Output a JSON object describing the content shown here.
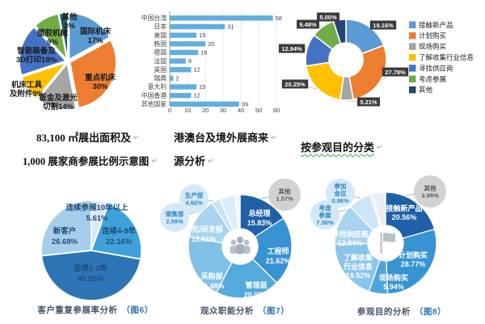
{
  "page": {
    "background": "#ffffff"
  },
  "texts": {
    "area_line1": "83,100 ㎡展出面积及",
    "area_line2": "1,000 展家商参展比例示意图",
    "overseas_line1": "港澳台及境外展商来",
    "overseas_line2": "源分析",
    "purpose_title": "按参观目的分类",
    "paragraph_mark": "↵"
  },
  "chart_data": [
    {
      "id": "exhibitor-structure-pie",
      "type": "pie",
      "labels": [
        "国际机床",
        "重点机床",
        "钣金及激光切割",
        "机床工具及附件",
        "智能装备及3D打印",
        "塑胶机械",
        "其他"
      ],
      "values": [
        17,
        30,
        14,
        9,
        18,
        9,
        3
      ],
      "unit": "%",
      "label_lines": [
        [
          "国际机床",
          "17%"
        ],
        [
          "重点机床",
          "30%"
        ],
        [
          "钣金及激光",
          "切割14%"
        ],
        [
          "机床工具",
          "及附件9%"
        ],
        [
          "智能装备及",
          "3D打印18%"
        ],
        [
          "塑胶机械",
          "9%"
        ],
        [
          "其他",
          "3%"
        ]
      ],
      "colors": [
        "#5b9bd5",
        "#ed7d31",
        "#a5a5a5",
        "#ffc000",
        "#4472c4",
        "#70ad47",
        "#1e5c66"
      ]
    },
    {
      "id": "overseas-exhibitor-origin-bar",
      "type": "bar",
      "orientation": "horizontal",
      "categories": [
        "中国台湾",
        "日本",
        "美国",
        "韩国",
        "德国",
        "法国",
        "英国",
        "瑞典",
        "意大利",
        "中国香港",
        "其他国家"
      ],
      "values": [
        58,
        31,
        15,
        20,
        16,
        9,
        12,
        2,
        15,
        12,
        39
      ],
      "xlim": [
        0,
        60
      ],
      "xticks": [
        0,
        10,
        20,
        30,
        40,
        50,
        60
      ],
      "bar_color": "#62aede",
      "grid": true
    },
    {
      "id": "visit-purpose-classification-donut",
      "type": "pie",
      "labels": [
        "接触新产品",
        "计划购买",
        "现场购买",
        "了解收集行业信息",
        "寻找供应商",
        "考虑参展",
        "其他"
      ],
      "values": [
        19.16,
        27.78,
        5.21,
        20.25,
        12.94,
        9.48,
        5.0
      ],
      "value_labels": [
        "19.16%",
        "27.78%",
        "5.21%",
        "20.25%",
        "12.94%",
        "9.48%",
        "5.00%"
      ],
      "colors": [
        "#5b9bd5",
        "#ed7d31",
        "#a5a5a5",
        "#ffc000",
        "#4472c4",
        "#70ad47",
        "#264478"
      ],
      "legend_position": "right"
    },
    {
      "id": "repeat-exhibit-rate-pie",
      "type": "pie",
      "labels": [
        "连续参展10年以上",
        "连续4-9年",
        "连续1-3年",
        "新客户"
      ],
      "values": [
        5.61,
        22.16,
        45.55,
        26.68
      ],
      "label_lines": [
        [
          "连续参展10年以上",
          "5.61%"
        ],
        [
          "连续4-9年",
          "22.16%"
        ],
        [
          "连续1-3年",
          "45.55%"
        ],
        [
          "新客户",
          "26.68%"
        ]
      ],
      "colors": [
        "#dae9f6",
        "#3ea1d9",
        "#2e75b6",
        "#a6cde9"
      ],
      "caption": "客户重复参展率分析",
      "caption_fig": "（图6）"
    },
    {
      "id": "visitor-function-donut",
      "type": "donut",
      "labels": [
        "总经理",
        "工程师",
        "管理层",
        "采购部",
        "研究/研发部",
        "销售部",
        "生产部",
        "其他"
      ],
      "values": [
        15.83,
        21.62,
        20.08,
        20.48,
        12.91,
        2.59,
        4.92,
        1.57
      ],
      "inner_labels": [
        [
          "总经理",
          "15.83%"
        ],
        [
          "工程师",
          "21.62%"
        ],
        [
          "管理层",
          "20.08%"
        ],
        [
          "采购部",
          "20.48%"
        ],
        [
          "研究/研发部",
          "12.91%"
        ]
      ],
      "callouts": [
        [
          "销售部",
          "2.59%"
        ],
        [
          "生产部",
          "4.92%"
        ],
        [
          "其他",
          "1.57%"
        ]
      ],
      "colors": [
        "#1f60a9",
        "#3793d2",
        "#54a9dd",
        "#7fc0e8",
        "#a9d4f0",
        "#c6e2f5",
        "#dcedf9",
        "#f2f8fd"
      ],
      "center_icon": "people-icon",
      "caption": "观众职能分析",
      "caption_fig": "（图7）"
    },
    {
      "id": "visit-purpose-analysis-donut",
      "type": "donut",
      "labels": [
        "接触新产品",
        "计划购买",
        "现场购买",
        "了解收集行业信息",
        "寻找供应商",
        "考虑参展",
        "参加会议",
        "其他"
      ],
      "values": [
        20.56,
        28.77,
        5.94,
        19.52,
        12.94,
        7.36,
        0.96,
        3.95
      ],
      "inner_labels": [
        [
          "接触新产品",
          "20.56%"
        ],
        [
          "计划购买",
          "28.77%"
        ],
        [
          "现场购买",
          "5.94%"
        ],
        [
          "了解收集",
          "行业信息",
          "19.52%"
        ],
        [
          "寻找供应商",
          "12.94%"
        ]
      ],
      "callouts": [
        [
          "考虑",
          "参展",
          "7.36%"
        ],
        [
          "参加",
          "会议",
          "0.96%"
        ],
        [
          "其他",
          "3.95%"
        ]
      ],
      "colors": [
        "#1f60a9",
        "#3793d2",
        "#4fa5db",
        "#8ac4ea",
        "#a9d4f0",
        "#cde5f6",
        "#e2f0fa",
        "#e8eef2"
      ],
      "center_icon": "flag-icon",
      "caption": "参观目的分析",
      "caption_fig": "（图8）"
    }
  ]
}
